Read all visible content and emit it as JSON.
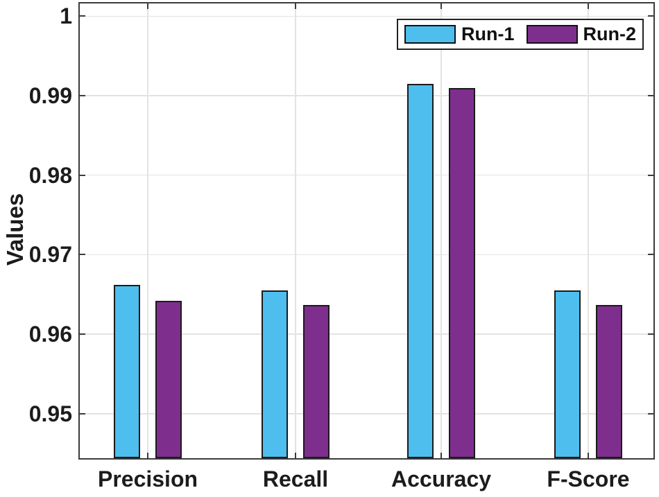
{
  "chart_data": {
    "type": "bar",
    "title": "",
    "categories": [
      "Precision",
      "Recall",
      "Accuracy",
      "F-Score"
    ],
    "series": [
      {
        "name": "Run-1",
        "color": "#4DBEEE",
        "values": [
          0.9662,
          0.9655,
          0.9915,
          0.9655
        ]
      },
      {
        "name": "Run-2",
        "color": "#7E2F8E",
        "values": [
          0.9642,
          0.9637,
          0.991,
          0.9637
        ]
      }
    ],
    "xlabel": "",
    "ylabel": "Values",
    "ylim": [
      0.9444,
      1.0016
    ],
    "yticks": [
      0.95,
      0.96,
      0.97,
      0.98,
      0.99,
      1
    ],
    "ytick_labels": [
      "0.95",
      "0.96",
      "0.97",
      "0.98",
      "0.99",
      "1"
    ],
    "grid": true,
    "legend_position": "top-right",
    "colors": {
      "bar_edge": "#1a1a1a",
      "axis": "#3b3b3b",
      "grid": "#e3e3e3",
      "text": "#1c1c1c",
      "background": "#ffffff"
    }
  }
}
